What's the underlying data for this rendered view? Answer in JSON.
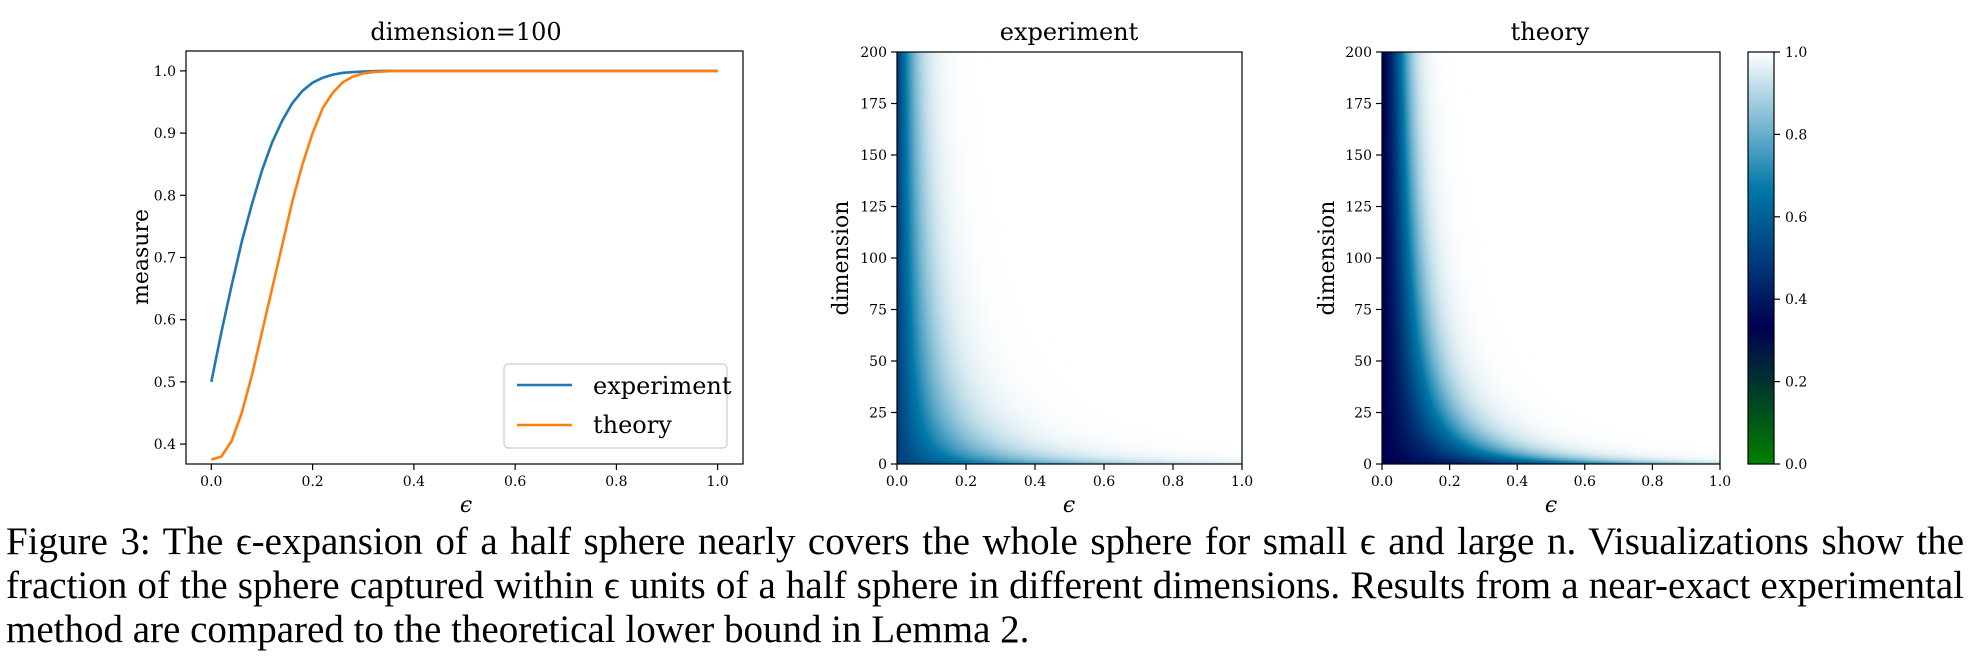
{
  "chart_data": [
    {
      "type": "line",
      "title": "dimension=100",
      "xlabel": "ϵ",
      "ylabel": "measure",
      "xlim": [
        -0.05,
        1.05
      ],
      "ylim": [
        0.368,
        1.032
      ],
      "xticks": [
        "0.0",
        "0.2",
        "0.4",
        "0.6",
        "0.8",
        "1.0"
      ],
      "yticks": [
        "0.4",
        "0.5",
        "0.6",
        "0.7",
        "0.8",
        "0.9",
        "1.0"
      ],
      "grid": false,
      "legend_position": "bottom-right",
      "x": [
        0.0,
        0.02,
        0.04,
        0.06,
        0.08,
        0.1,
        0.12,
        0.14,
        0.16,
        0.18,
        0.2,
        0.22,
        0.24,
        0.26,
        0.28,
        0.3,
        0.32,
        0.34,
        0.36,
        0.38,
        0.4,
        0.45,
        0.5,
        0.6,
        0.7,
        0.8,
        0.9,
        1.0
      ],
      "series": [
        {
          "name": "experiment",
          "color": "#1f77b4",
          "values": [
            0.5,
            0.58,
            0.655,
            0.725,
            0.785,
            0.84,
            0.885,
            0.92,
            0.948,
            0.968,
            0.981,
            0.989,
            0.994,
            0.997,
            0.998,
            0.999,
            0.9995,
            1.0,
            1.0,
            1.0,
            1.0,
            1.0,
            1.0,
            1.0,
            1.0,
            1.0,
            1.0,
            1.0
          ]
        },
        {
          "name": "theory",
          "color": "#ff7f0e",
          "values": [
            0.375,
            0.38,
            0.405,
            0.45,
            0.51,
            0.58,
            0.65,
            0.72,
            0.79,
            0.85,
            0.9,
            0.94,
            0.965,
            0.982,
            0.991,
            0.996,
            0.998,
            0.999,
            1.0,
            1.0,
            1.0,
            1.0,
            1.0,
            1.0,
            1.0,
            1.0,
            1.0,
            1.0
          ]
        }
      ]
    },
    {
      "type": "heatmap",
      "title": "experiment",
      "xlabel": "ϵ",
      "ylabel": "dimension",
      "xlim": [
        0.0,
        1.0
      ],
      "ylim": [
        0,
        200
      ],
      "xticks": [
        "0.0",
        "0.2",
        "0.4",
        "0.6",
        "0.8",
        "1.0"
      ],
      "yticks": [
        "0",
        "25",
        "50",
        "75",
        "100",
        "125",
        "150",
        "175",
        "200"
      ]
    },
    {
      "type": "heatmap",
      "title": "theory",
      "xlabel": "ϵ",
      "ylabel": "dimension",
      "xlim": [
        0.0,
        1.0
      ],
      "ylim": [
        0,
        200
      ],
      "xticks": [
        "0.0",
        "0.2",
        "0.4",
        "0.6",
        "0.8",
        "1.0"
      ],
      "yticks": [
        "0",
        "25",
        "50",
        "75",
        "100",
        "125",
        "150",
        "175",
        "200"
      ],
      "colorbar": {
        "range": [
          0.0,
          1.0
        ],
        "ticks": [
          "0.0",
          "0.2",
          "0.4",
          "0.6",
          "0.8",
          "1.0"
        ],
        "colormap": "ocean (green-navy-teal-white)"
      }
    }
  ],
  "caption": {
    "label": "Figure 3:",
    "text": "The ϵ-expansion of a half sphere nearly covers the whole sphere for small ϵ and large n. Visualizations show the fraction of the sphere captured within ϵ units of a half sphere in different dimensions. Results from a near-exact experimental method are compared to the theoretical lower bound in Lemma 2."
  }
}
